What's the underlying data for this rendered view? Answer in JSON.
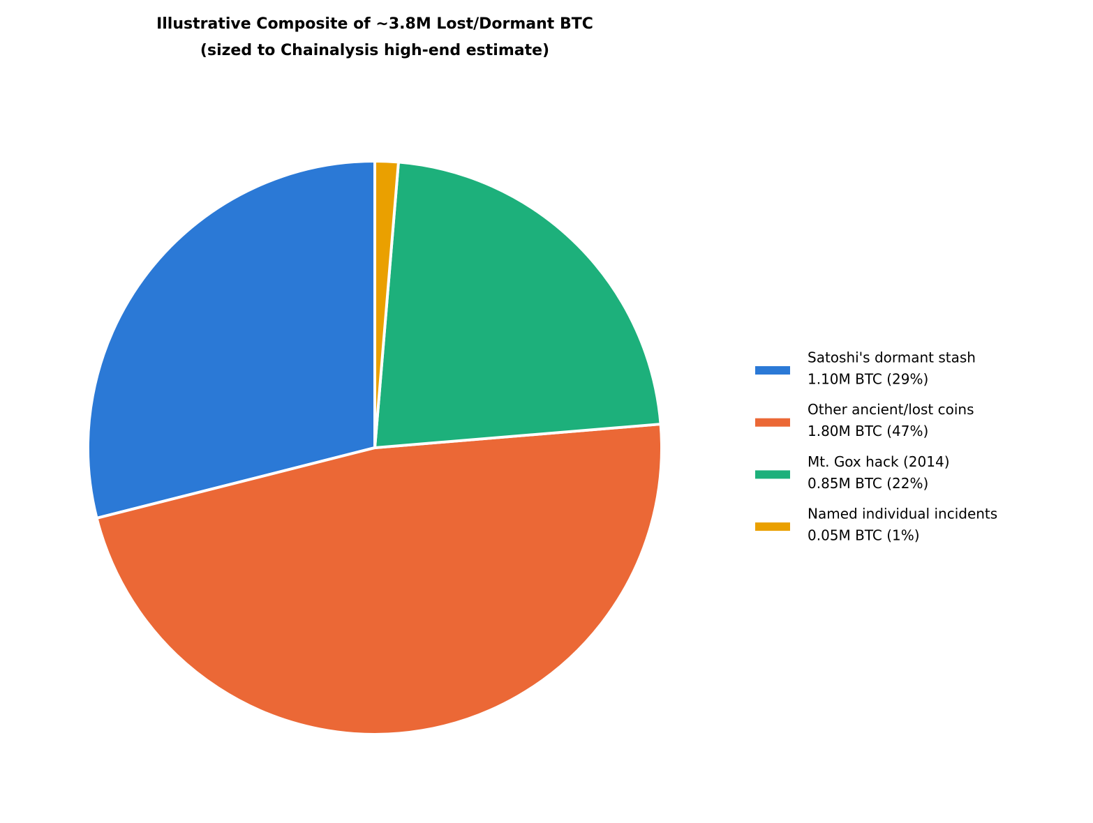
{
  "chart_data": {
    "type": "pie",
    "title": "Illustrative Composite of ~3.8M Lost/Dormant BTC",
    "subtitle": "(sized to Chainalysis high-end estimate)",
    "categories": [
      "Satoshi's dormant stash",
      "Other ancient/lost coins",
      "Mt. Gox hack (2014)",
      "Named individual incidents"
    ],
    "values": [
      1.1,
      1.8,
      0.85,
      0.05
    ],
    "value_labels": [
      "1.10M BTC (29%)",
      "1.80M BTC (47%)",
      "0.85M BTC (22%)",
      "0.05M BTC (1%)"
    ],
    "colors": [
      "#2b79d6",
      "#eb6836",
      "#1db07b",
      "#eaa000"
    ],
    "legend": "right"
  }
}
